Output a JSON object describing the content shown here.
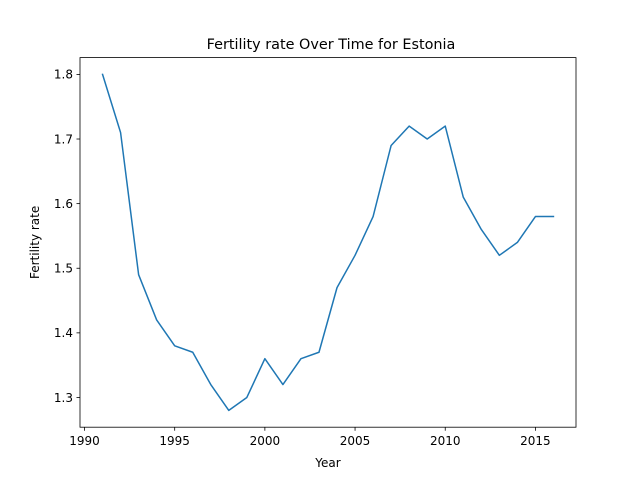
{
  "chart_data": {
    "type": "line",
    "title": "Fertility rate Over Time for Estonia",
    "xlabel": "Year",
    "ylabel": "Fertility rate",
    "xlim": [
      1989.75,
      2017.25
    ],
    "ylim": [
      1.254,
      1.826
    ],
    "xticks": [
      1990,
      1995,
      2000,
      2005,
      2010,
      2015
    ],
    "yticks": [
      1.3,
      1.4,
      1.5,
      1.6,
      1.7,
      1.8
    ],
    "xtick_labels": [
      "1990",
      "1995",
      "2000",
      "2005",
      "2010",
      "2015"
    ],
    "ytick_labels": [
      "1.3",
      "1.4",
      "1.5",
      "1.6",
      "1.7",
      "1.8"
    ],
    "grid": false,
    "series": [
      {
        "color": "#1f77b4",
        "x": [
          1991,
          1992,
          1993,
          1994,
          1995,
          1996,
          1997,
          1998,
          1999,
          2000,
          2001,
          2002,
          2003,
          2004,
          2005,
          2006,
          2007,
          2008,
          2009,
          2010,
          2011,
          2012,
          2013,
          2014,
          2015,
          2016
        ],
        "y": [
          1.8,
          1.71,
          1.49,
          1.42,
          1.38,
          1.37,
          1.32,
          1.28,
          1.3,
          1.36,
          1.32,
          1.36,
          1.37,
          1.47,
          1.52,
          1.58,
          1.69,
          1.72,
          1.7,
          1.72,
          1.61,
          1.56,
          1.52,
          1.54,
          1.58,
          1.58
        ]
      }
    ]
  }
}
